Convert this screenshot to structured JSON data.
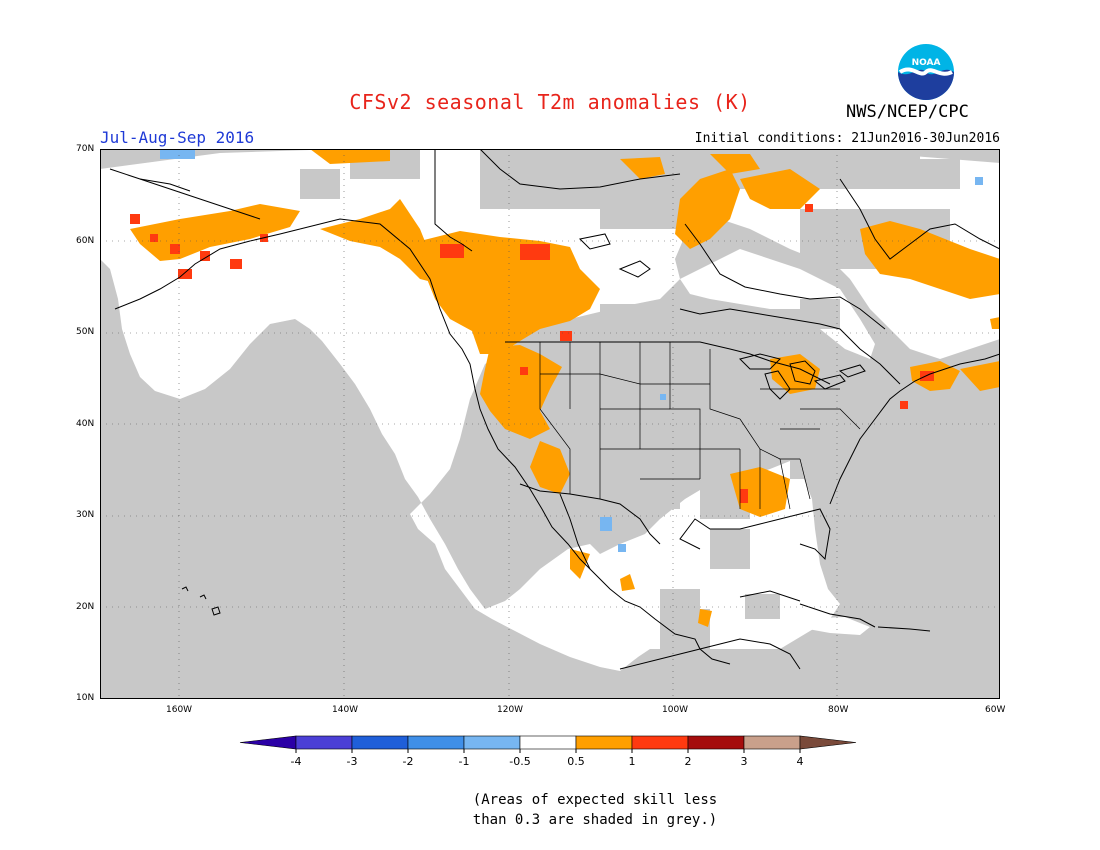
{
  "title": "CFSv2 seasonal T2m anomalies (K)",
  "agency": "NWS/NCEP/CPC",
  "logo_text": "NOAA",
  "season": "Jul-Aug-Sep 2016",
  "initial_conditions": "Initial conditions: 21Jun2016-30Jun2016",
  "lat_labels": [
    "70N",
    "60N",
    "50N",
    "40N",
    "30N",
    "20N",
    "10N"
  ],
  "lon_labels": [
    "160W",
    "140W",
    "120W",
    "100W",
    "80W",
    "60W"
  ],
  "colorbar": {
    "ticks": [
      "-4",
      "-3",
      "-2",
      "-1",
      "-0.5",
      "0.5",
      "1",
      "2",
      "3",
      "4"
    ],
    "colors": [
      "#2b00a6",
      "#4b3fd6",
      "#1f5fd9",
      "#3f8fe8",
      "#77b6f1",
      "#ffffff",
      "#ff9f00",
      "#ff3a10",
      "#a50d0d",
      "#c9a08b",
      "#7a4a3a"
    ]
  },
  "colors": {
    "land": "#ffffff",
    "grey_mask": "#c8c8c8",
    "warm_0_5_1": "#ff9f00",
    "warm_1_2": "#ff3a10",
    "cool_minus_1_minus_0_5": "#77b6f1"
  },
  "note": [
    "(Areas of expected skill less",
    "than 0.3 are shaded in grey.)"
  ]
}
